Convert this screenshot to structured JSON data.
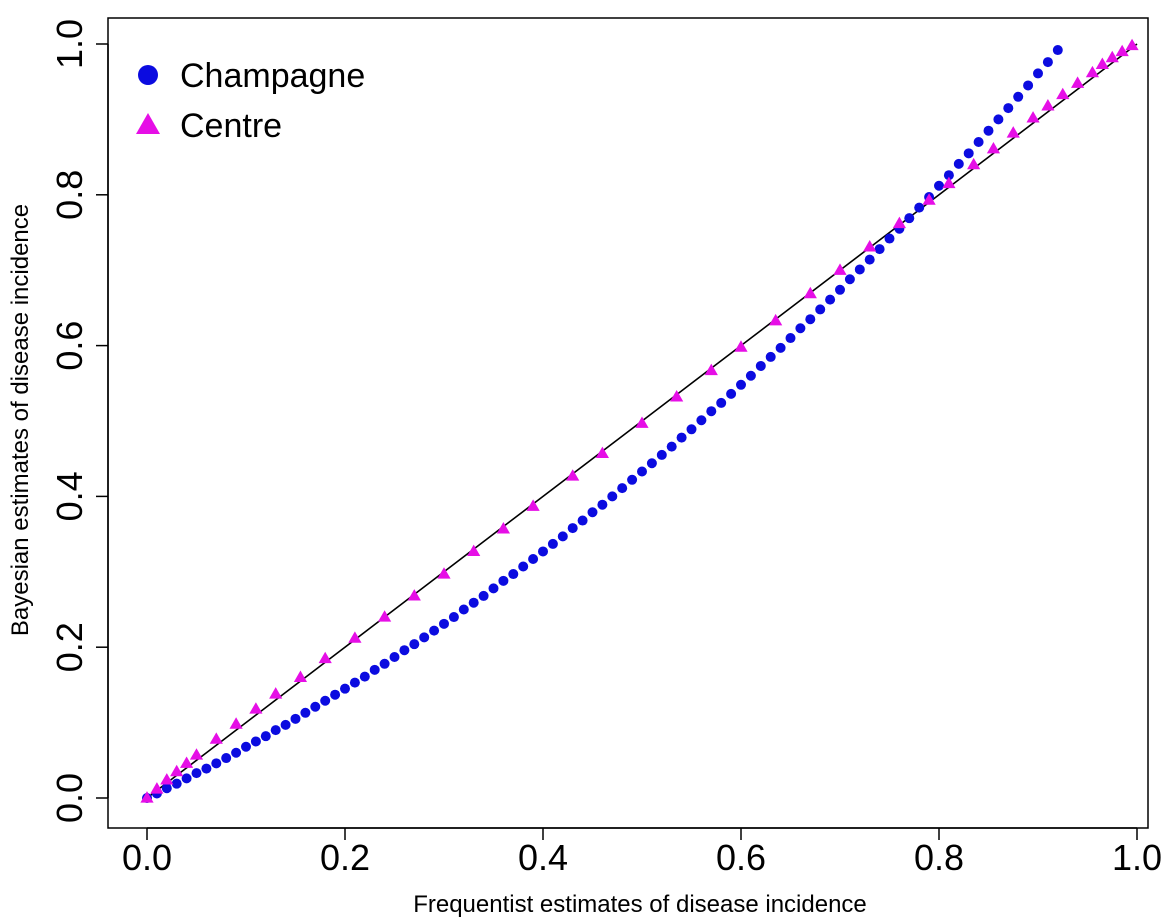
{
  "chart_data": {
    "type": "scatter",
    "xlabel": "Frequentist estimates of disease incidence",
    "ylabel": "Bayesian estimates of disease incidence",
    "xlim": [
      0,
      1
    ],
    "ylim": [
      0,
      1
    ],
    "x_ticks": [
      "0.0",
      "0.2",
      "0.4",
      "0.6",
      "0.8",
      "1.0"
    ],
    "y_ticks": [
      "0.0",
      "0.2",
      "0.4",
      "0.6",
      "0.8",
      "1.0"
    ],
    "legend_position": "top-left",
    "grid": false,
    "reference_line": {
      "description": "identity",
      "from": [
        0,
        0
      ],
      "to": [
        1,
        1
      ],
      "color": "#000000"
    },
    "series": [
      {
        "name": "Champagne",
        "marker": "circle",
        "color": "#0b0be0",
        "points": [
          [
            0.0,
            0.0
          ],
          [
            0.01,
            0.006
          ],
          [
            0.02,
            0.013
          ],
          [
            0.03,
            0.019
          ],
          [
            0.04,
            0.026
          ],
          [
            0.05,
            0.033
          ],
          [
            0.06,
            0.039
          ],
          [
            0.07,
            0.046
          ],
          [
            0.08,
            0.053
          ],
          [
            0.09,
            0.06
          ],
          [
            0.1,
            0.068
          ],
          [
            0.11,
            0.075
          ],
          [
            0.12,
            0.082
          ],
          [
            0.13,
            0.09
          ],
          [
            0.14,
            0.097
          ],
          [
            0.15,
            0.105
          ],
          [
            0.16,
            0.113
          ],
          [
            0.17,
            0.121
          ],
          [
            0.18,
            0.129
          ],
          [
            0.19,
            0.137
          ],
          [
            0.2,
            0.145
          ],
          [
            0.21,
            0.153
          ],
          [
            0.22,
            0.161
          ],
          [
            0.23,
            0.17
          ],
          [
            0.24,
            0.178
          ],
          [
            0.25,
            0.187
          ],
          [
            0.26,
            0.196
          ],
          [
            0.27,
            0.204
          ],
          [
            0.28,
            0.213
          ],
          [
            0.29,
            0.222
          ],
          [
            0.3,
            0.231
          ],
          [
            0.31,
            0.24
          ],
          [
            0.32,
            0.25
          ],
          [
            0.33,
            0.259
          ],
          [
            0.34,
            0.268
          ],
          [
            0.35,
            0.278
          ],
          [
            0.36,
            0.288
          ],
          [
            0.37,
            0.297
          ],
          [
            0.38,
            0.307
          ],
          [
            0.39,
            0.317
          ],
          [
            0.4,
            0.327
          ],
          [
            0.41,
            0.337
          ],
          [
            0.42,
            0.347
          ],
          [
            0.43,
            0.358
          ],
          [
            0.44,
            0.368
          ],
          [
            0.45,
            0.379
          ],
          [
            0.46,
            0.389
          ],
          [
            0.47,
            0.4
          ],
          [
            0.48,
            0.411
          ],
          [
            0.49,
            0.422
          ],
          [
            0.5,
            0.433
          ],
          [
            0.51,
            0.444
          ],
          [
            0.52,
            0.455
          ],
          [
            0.53,
            0.466
          ],
          [
            0.54,
            0.478
          ],
          [
            0.55,
            0.489
          ],
          [
            0.56,
            0.501
          ],
          [
            0.57,
            0.513
          ],
          [
            0.58,
            0.524
          ],
          [
            0.59,
            0.536
          ],
          [
            0.6,
            0.548
          ],
          [
            0.61,
            0.56
          ],
          [
            0.62,
            0.573
          ],
          [
            0.63,
            0.585
          ],
          [
            0.64,
            0.597
          ],
          [
            0.65,
            0.61
          ],
          [
            0.66,
            0.623
          ],
          [
            0.67,
            0.635
          ],
          [
            0.68,
            0.648
          ],
          [
            0.69,
            0.661
          ],
          [
            0.7,
            0.674
          ],
          [
            0.71,
            0.688
          ],
          [
            0.72,
            0.701
          ],
          [
            0.73,
            0.714
          ],
          [
            0.74,
            0.728
          ],
          [
            0.75,
            0.742
          ],
          [
            0.76,
            0.755
          ],
          [
            0.77,
            0.769
          ],
          [
            0.78,
            0.783
          ],
          [
            0.79,
            0.797
          ],
          [
            0.8,
            0.812
          ],
          [
            0.81,
            0.826
          ],
          [
            0.82,
            0.841
          ],
          [
            0.83,
            0.855
          ],
          [
            0.84,
            0.87
          ],
          [
            0.85,
            0.885
          ],
          [
            0.86,
            0.9
          ],
          [
            0.87,
            0.915
          ],
          [
            0.88,
            0.93
          ],
          [
            0.89,
            0.945
          ],
          [
            0.9,
            0.961
          ],
          [
            0.91,
            0.976
          ],
          [
            0.92,
            0.992
          ]
        ]
      },
      {
        "name": "Centre",
        "marker": "triangle",
        "color": "#e60ee6",
        "points": [
          [
            0.0,
            0.0
          ],
          [
            0.01,
            0.012
          ],
          [
            0.02,
            0.024
          ],
          [
            0.03,
            0.035
          ],
          [
            0.04,
            0.046
          ],
          [
            0.05,
            0.057
          ],
          [
            0.07,
            0.078
          ],
          [
            0.09,
            0.098
          ],
          [
            0.11,
            0.118
          ],
          [
            0.13,
            0.138
          ],
          [
            0.155,
            0.16
          ],
          [
            0.18,
            0.185
          ],
          [
            0.21,
            0.212
          ],
          [
            0.24,
            0.24
          ],
          [
            0.27,
            0.268
          ],
          [
            0.3,
            0.297
          ],
          [
            0.33,
            0.327
          ],
          [
            0.36,
            0.357
          ],
          [
            0.39,
            0.387
          ],
          [
            0.43,
            0.427
          ],
          [
            0.46,
            0.457
          ],
          [
            0.5,
            0.497
          ],
          [
            0.535,
            0.532
          ],
          [
            0.57,
            0.567
          ],
          [
            0.6,
            0.598
          ],
          [
            0.635,
            0.633
          ],
          [
            0.67,
            0.669
          ],
          [
            0.7,
            0.7
          ],
          [
            0.73,
            0.731
          ],
          [
            0.76,
            0.762
          ],
          [
            0.79,
            0.793
          ],
          [
            0.81,
            0.815
          ],
          [
            0.835,
            0.84
          ],
          [
            0.855,
            0.861
          ],
          [
            0.875,
            0.882
          ],
          [
            0.895,
            0.902
          ],
          [
            0.91,
            0.918
          ],
          [
            0.925,
            0.933
          ],
          [
            0.94,
            0.948
          ],
          [
            0.955,
            0.962
          ],
          [
            0.965,
            0.973
          ],
          [
            0.975,
            0.982
          ],
          [
            0.985,
            0.99
          ],
          [
            0.995,
            0.998
          ]
        ]
      }
    ]
  }
}
